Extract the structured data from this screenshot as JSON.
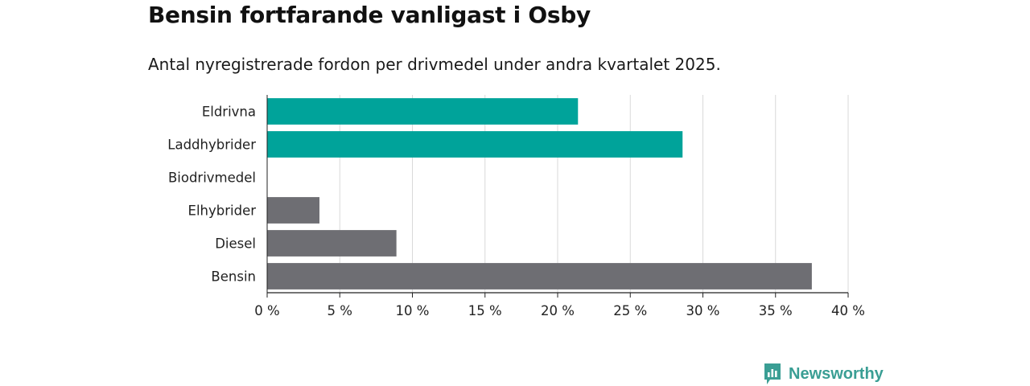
{
  "header": {
    "title": "Bensin fortfarande vanligast i Osby",
    "subtitle": "Antal nyregistrerade fordon per drivmedel under andra kvartalet 2025."
  },
  "brand": {
    "name": "Newsworthy",
    "icon": "newsworthy-logo-icon",
    "color": "#3a9e94"
  },
  "chart_data": {
    "type": "bar",
    "orientation": "horizontal",
    "categories": [
      "Eldrivna",
      "Laddhybrider",
      "Biodrivmedel",
      "Elhybrider",
      "Diesel",
      "Bensin"
    ],
    "values": [
      21.4,
      28.6,
      0,
      3.6,
      8.9,
      37.5
    ],
    "bar_colors": [
      "#00a39a",
      "#00a39a",
      "#00a39a",
      "#6e6e73",
      "#6e6e73",
      "#6e6e73"
    ],
    "xlim": [
      0,
      40
    ],
    "xticks": [
      0,
      5,
      10,
      15,
      20,
      25,
      30,
      35,
      40
    ],
    "tick_labels": [
      "0 %",
      "5 %",
      "10 %",
      "15 %",
      "20 %",
      "25 %",
      "30 %",
      "35 %",
      "40 %"
    ],
    "grid": "vertical",
    "legend": "none"
  }
}
